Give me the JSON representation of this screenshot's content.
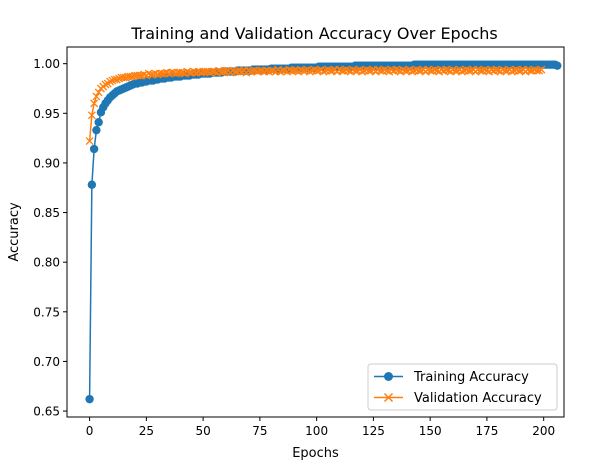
{
  "chart_data": {
    "type": "line",
    "title": "Training and Validation Accuracy Over Epochs",
    "xlabel": "Epochs",
    "ylabel": "Accuracy",
    "xlim": [
      -9.95,
      208.95
    ],
    "ylim": [
      0.644,
      1.0168
    ],
    "xticks": [
      0,
      25,
      50,
      75,
      100,
      125,
      150,
      175,
      200
    ],
    "yticks": [
      0.65,
      0.7,
      0.75,
      0.8,
      0.85,
      0.9,
      0.95,
      1.0
    ],
    "ytick_labels": [
      "0.65",
      "0.70",
      "0.75",
      "0.80",
      "0.85",
      "0.90",
      "0.95",
      "1.00"
    ],
    "grid": false,
    "legend_position": "lower right",
    "series": [
      {
        "name": "Training Accuracy",
        "color": "#1f77b4",
        "marker": "circle",
        "values": [
          0.662,
          0.878,
          0.914,
          0.933,
          0.941,
          0.951,
          0.956,
          0.96,
          0.963,
          0.966,
          0.968,
          0.97,
          0.972,
          0.973,
          0.974,
          0.975,
          0.976,
          0.977,
          0.978,
          0.979,
          0.98,
          0.98,
          0.981,
          0.981,
          0.982,
          0.982,
          0.983,
          0.983,
          0.983,
          0.984,
          0.984,
          0.985,
          0.985,
          0.985,
          0.986,
          0.986,
          0.986,
          0.987,
          0.987,
          0.987,
          0.987,
          0.988,
          0.988,
          0.988,
          0.988,
          0.989,
          0.989,
          0.989,
          0.989,
          0.99,
          0.99,
          0.99,
          0.99,
          0.99,
          0.991,
          0.991,
          0.991,
          0.991,
          0.991,
          0.992,
          0.992,
          0.992,
          0.992,
          0.992,
          0.992,
          0.993,
          0.993,
          0.993,
          0.993,
          0.993,
          0.993,
          0.993,
          0.994,
          0.994,
          0.994,
          0.994,
          0.994,
          0.994,
          0.994,
          0.994,
          0.995,
          0.995,
          0.995,
          0.995,
          0.995,
          0.995,
          0.995,
          0.995,
          0.995,
          0.996,
          0.996,
          0.996,
          0.996,
          0.996,
          0.996,
          0.996,
          0.996,
          0.996,
          0.996,
          0.996,
          0.996,
          0.997,
          0.997,
          0.997,
          0.997,
          0.997,
          0.997,
          0.997,
          0.997,
          0.997,
          0.997,
          0.997,
          0.997,
          0.997,
          0.997,
          0.997,
          0.997,
          0.998,
          0.998,
          0.998,
          0.998,
          0.998,
          0.998,
          0.998,
          0.998,
          0.998,
          0.998,
          0.998,
          0.998,
          0.998,
          0.998,
          0.998,
          0.998,
          0.998,
          0.998,
          0.998,
          0.998,
          0.998,
          0.998,
          0.998,
          0.998,
          0.998,
          0.998,
          0.999,
          0.999,
          0.999,
          0.999,
          0.999,
          0.999,
          0.999,
          0.999,
          0.999,
          0.999,
          0.999,
          0.999,
          0.999,
          0.999,
          0.999,
          0.999,
          0.999,
          0.999,
          0.999,
          0.999,
          0.999,
          0.999,
          0.999,
          0.999,
          0.999,
          0.999,
          0.999,
          0.999,
          0.999,
          0.999,
          0.999,
          0.999,
          0.999,
          0.999,
          0.999,
          0.999,
          0.999,
          0.999,
          0.999,
          0.999,
          0.999,
          0.999,
          0.999,
          0.999,
          0.999,
          0.999,
          0.999,
          0.999,
          0.999,
          0.999,
          0.999,
          0.999,
          0.999,
          0.999,
          0.999,
          0.999,
          0.999,
          0.999,
          0.999,
          0.999,
          0.999,
          0.999,
          0.999,
          0.998
        ]
      },
      {
        "name": "Validation Accuracy",
        "color": "#ff7f0e",
        "marker": "x",
        "values": [
          0.922,
          0.948,
          0.96,
          0.967,
          0.971,
          0.975,
          0.977,
          0.979,
          0.98,
          0.982,
          0.983,
          0.984,
          0.984,
          0.985,
          0.986,
          0.986,
          0.986,
          0.987,
          0.987,
          0.987,
          0.988,
          0.988,
          0.988,
          0.988,
          0.989,
          0.988,
          0.99,
          0.989,
          0.989,
          0.99,
          0.989,
          0.99,
          0.99,
          0.99,
          0.991,
          0.99,
          0.991,
          0.991,
          0.99,
          0.991,
          0.991,
          0.991,
          0.99,
          0.992,
          0.991,
          0.991,
          0.992,
          0.991,
          0.992,
          0.991,
          0.992,
          0.992,
          0.992,
          0.991,
          0.992,
          0.992,
          0.991,
          0.993,
          0.992,
          0.992,
          0.992,
          0.993,
          0.991,
          0.993,
          0.992,
          0.992,
          0.993,
          0.992,
          0.993,
          0.991,
          0.993,
          0.992,
          0.993,
          0.993,
          0.992,
          0.993,
          0.993,
          0.992,
          0.993,
          0.992,
          0.993,
          0.993,
          0.992,
          0.994,
          0.992,
          0.993,
          0.993,
          0.992,
          0.994,
          0.993,
          0.993,
          0.993,
          0.992,
          0.994,
          0.993,
          0.993,
          0.994,
          0.992,
          0.993,
          0.994,
          0.993,
          0.993,
          0.994,
          0.992,
          0.993,
          0.994,
          0.993,
          0.993,
          0.994,
          0.992,
          0.994,
          0.993,
          0.993,
          0.994,
          0.993,
          0.992,
          0.994,
          0.993,
          0.993,
          0.994,
          0.992,
          0.993,
          0.994,
          0.993,
          0.993,
          0.994,
          0.992,
          0.994,
          0.993,
          0.993,
          0.994,
          0.993,
          0.992,
          0.994,
          0.993,
          0.994,
          0.993,
          0.992,
          0.994,
          0.993,
          0.993,
          0.994,
          0.992,
          0.993,
          0.994,
          0.993,
          0.993,
          0.994,
          0.992,
          0.994,
          0.993,
          0.993,
          0.994,
          0.993,
          0.992,
          0.994,
          0.993,
          0.994,
          0.993,
          0.992,
          0.994,
          0.993,
          0.993,
          0.994,
          0.992,
          0.993,
          0.994,
          0.993,
          0.993,
          0.994,
          0.992,
          0.994,
          0.993,
          0.993,
          0.994,
          0.993,
          0.992,
          0.994,
          0.993,
          0.994,
          0.993,
          0.992,
          0.994,
          0.993,
          0.993,
          0.994,
          0.992,
          0.993,
          0.994,
          0.993,
          0.993,
          0.994,
          0.992,
          0.994,
          0.993,
          0.993,
          0.994,
          0.993,
          0.993,
          0.994
        ]
      }
    ]
  }
}
